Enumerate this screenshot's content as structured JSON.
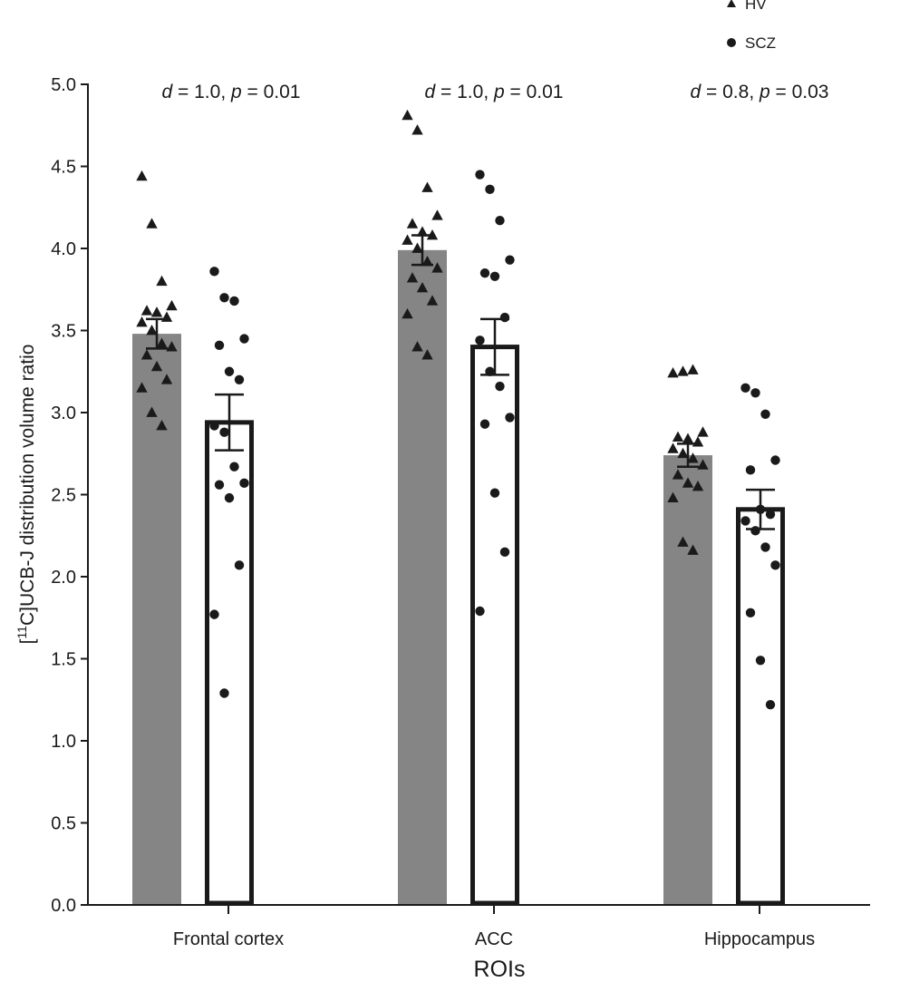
{
  "chart_data": {
    "type": "bar",
    "categories": [
      "Frontal cortex",
      "ACC",
      "Hippocampus"
    ],
    "xlabel": "ROIs",
    "ylabel_prefix": "[",
    "ylabel_superscript": "11",
    "ylabel_suffix": "C]UCB-J distribution volume ratio",
    "ylim": [
      0,
      5
    ],
    "yticks": [
      "0.0",
      "0.5",
      "1.0",
      "1.5",
      "2.0",
      "2.5",
      "3.0",
      "3.5",
      "4.0",
      "4.5",
      "5.0"
    ],
    "grid": false,
    "legend_position": "top-right",
    "colors": {
      "hv_bar": "#858585",
      "scz_bar_fill": "#ffffff",
      "scz_bar_edge": "#1a1a1a",
      "marker": "#1a1a1a"
    },
    "annotations": [
      {
        "d": "1.0",
        "p": "0.01"
      },
      {
        "d": "1.0",
        "p": "0.01"
      },
      {
        "d": "0.8",
        "p": "0.03"
      }
    ],
    "series": [
      {
        "name": "HV",
        "marker": "triangle",
        "means": [
          3.48,
          3.99,
          2.74
        ],
        "sem": [
          0.09,
          0.09,
          0.07
        ],
        "points": [
          [
            4.44,
            4.15,
            3.8,
            3.65,
            3.62,
            3.61,
            3.58,
            3.55,
            3.5,
            3.42,
            3.4,
            3.35,
            3.28,
            3.2,
            3.15,
            3.0,
            2.92
          ],
          [
            4.81,
            4.72,
            4.37,
            4.2,
            4.15,
            4.1,
            4.08,
            4.05,
            4.0,
            3.92,
            3.88,
            3.82,
            3.76,
            3.68,
            3.6,
            3.4,
            3.35
          ],
          [
            3.24,
            3.25,
            3.26,
            2.88,
            2.85,
            2.84,
            2.82,
            2.78,
            2.75,
            2.72,
            2.68,
            2.62,
            2.57,
            2.55,
            2.48,
            2.21,
            2.16
          ]
        ]
      },
      {
        "name": "SCZ",
        "marker": "circle",
        "means": [
          2.94,
          3.4,
          2.41
        ],
        "sem": [
          0.17,
          0.17,
          0.12
        ],
        "points": [
          [
            3.86,
            3.7,
            3.68,
            3.45,
            3.41,
            3.25,
            3.2,
            2.92,
            2.88,
            2.67,
            2.57,
            2.56,
            2.48,
            2.07,
            1.77,
            1.29
          ],
          [
            4.45,
            4.36,
            4.17,
            3.93,
            3.85,
            3.83,
            3.58,
            3.44,
            3.25,
            3.16,
            2.97,
            2.93,
            2.51,
            2.15,
            1.79
          ],
          [
            3.15,
            3.12,
            2.99,
            2.71,
            2.65,
            2.41,
            2.38,
            2.34,
            2.28,
            2.18,
            2.07,
            1.78,
            1.49,
            1.22
          ]
        ]
      }
    ]
  }
}
